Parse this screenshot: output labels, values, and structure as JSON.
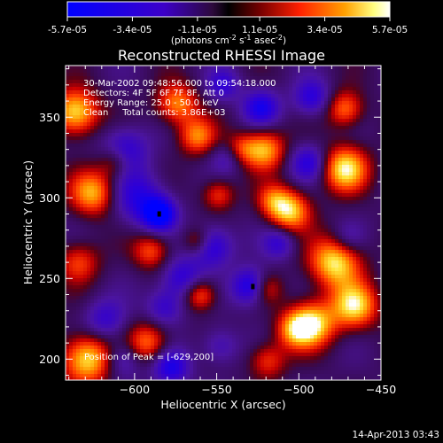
{
  "colorbar": {
    "ticks": [
      "-5.7e-05",
      "-3.4e-05",
      "-1.1e-05",
      "1.1e-05",
      "3.4e-05",
      "5.7e-05"
    ],
    "units_prefix": "(photons cm",
    "units_exp1": "-2",
    "units_mid": " s",
    "units_exp2": "-1",
    "units_mid2": " asec",
    "units_exp3": "-2",
    "units_suffix": ")",
    "range": [
      -5.7e-05,
      5.7e-05
    ],
    "colormap": "RHESSI red-temperature (blue negative, purple/black mid, red-orange-yellow-white positive)"
  },
  "title": "Reconstructed RHESSI Image",
  "info": {
    "time_range": "30-Mar-2002 09:48:56.000 to 09:54:18.000",
    "detectors": "Detectors: 4F 5F 6F 7F 8F, Att 0",
    "energy": "Energy Range: 25.0 - 50.0 keV",
    "method_counts": "Clean     Total counts: 3.86E+03",
    "peak": "Position of Peak = [-629,200]"
  },
  "footer": {
    "date": "14-Apr-2013 03:43"
  },
  "chart_data": {
    "type": "heatmap",
    "title": "Reconstructed RHESSI Image",
    "xlabel": "Heliocentric X (arcsec)",
    "ylabel": "Heliocentric Y (arcsec)",
    "xlim": [
      -642,
      -450
    ],
    "ylim": [
      187,
      382
    ],
    "xticks": [
      -600,
      -550,
      -500,
      -450
    ],
    "yticks": [
      200,
      250,
      300,
      350
    ],
    "peak_position": [
      -629,
      200
    ],
    "value_range": [
      -5.7e-05,
      5.7e-05
    ],
    "sources": [
      {
        "x": -636,
        "y": 353,
        "v": 1.0,
        "s": 10
      },
      {
        "x": -625,
        "y": 303,
        "v": 0.85,
        "s": 10
      },
      {
        "x": -634,
        "y": 260,
        "v": 0.55,
        "s": 9
      },
      {
        "x": -629,
        "y": 200,
        "v": 1.0,
        "s": 11
      },
      {
        "x": -612,
        "y": 322,
        "v": 0.5,
        "s": 7
      },
      {
        "x": -590,
        "y": 267,
        "v": 0.6,
        "s": 8
      },
      {
        "x": -592,
        "y": 210,
        "v": 0.7,
        "s": 9
      },
      {
        "x": -574,
        "y": 358,
        "v": 0.75,
        "s": 9
      },
      {
        "x": -562,
        "y": 338,
        "v": 0.7,
        "s": 8
      },
      {
        "x": -562,
        "y": 273,
        "v": 0.5,
        "s": 6
      },
      {
        "x": -560,
        "y": 240,
        "v": 0.7,
        "s": 7
      },
      {
        "x": -549,
        "y": 302,
        "v": 0.55,
        "s": 7
      },
      {
        "x": -536,
        "y": 330,
        "v": 0.5,
        "s": 7
      },
      {
        "x": -521,
        "y": 330,
        "v": 0.85,
        "s": 9
      },
      {
        "x": -516,
        "y": 299,
        "v": 0.45,
        "s": 7
      },
      {
        "x": -521,
        "y": 244,
        "v": 0.7,
        "s": 7
      },
      {
        "x": -519,
        "y": 199,
        "v": 0.55,
        "s": 8
      },
      {
        "x": -506,
        "y": 292,
        "v": 0.95,
        "s": 9
      },
      {
        "x": -503,
        "y": 218,
        "v": 0.6,
        "s": 8
      },
      {
        "x": -492,
        "y": 222,
        "v": 1.0,
        "s": 10
      },
      {
        "x": -478,
        "y": 260,
        "v": 1.0,
        "s": 11
      },
      {
        "x": -472,
        "y": 318,
        "v": 1.0,
        "s": 10
      },
      {
        "x": -472,
        "y": 355,
        "v": 0.7,
        "s": 8
      },
      {
        "x": -466,
        "y": 233,
        "v": 0.95,
        "s": 10
      },
      {
        "x": -598,
        "y": 300,
        "v": -0.6,
        "s": 12
      },
      {
        "x": -585,
        "y": 290,
        "v": -1.0,
        "s": 7
      },
      {
        "x": -606,
        "y": 330,
        "v": -0.6,
        "s": 10
      },
      {
        "x": -582,
        "y": 232,
        "v": -0.5,
        "s": 8
      },
      {
        "x": -571,
        "y": 250,
        "v": -0.6,
        "s": 9
      },
      {
        "x": -553,
        "y": 270,
        "v": -0.7,
        "s": 9
      },
      {
        "x": -528,
        "y": 245,
        "v": -1.0,
        "s": 8
      },
      {
        "x": -523,
        "y": 356,
        "v": -0.7,
        "s": 8
      },
      {
        "x": -546,
        "y": 370,
        "v": -0.5,
        "s": 7
      },
      {
        "x": -494,
        "y": 322,
        "v": -0.6,
        "s": 8
      },
      {
        "x": -492,
        "y": 362,
        "v": -0.6,
        "s": 8
      },
      {
        "x": -512,
        "y": 272,
        "v": -0.5,
        "s": 7
      },
      {
        "x": -548,
        "y": 208,
        "v": -0.4,
        "s": 8
      },
      {
        "x": -618,
        "y": 224,
        "v": -0.5,
        "s": 9
      },
      {
        "x": -607,
        "y": 200,
        "v": -0.5,
        "s": 8
      },
      {
        "x": -578,
        "y": 195,
        "v": -0.7,
        "s": 8
      },
      {
        "x": -543,
        "y": 325,
        "v": -0.4,
        "s": 7
      },
      {
        "x": -470,
        "y": 275,
        "v": -0.3,
        "s": 7
      }
    ]
  }
}
